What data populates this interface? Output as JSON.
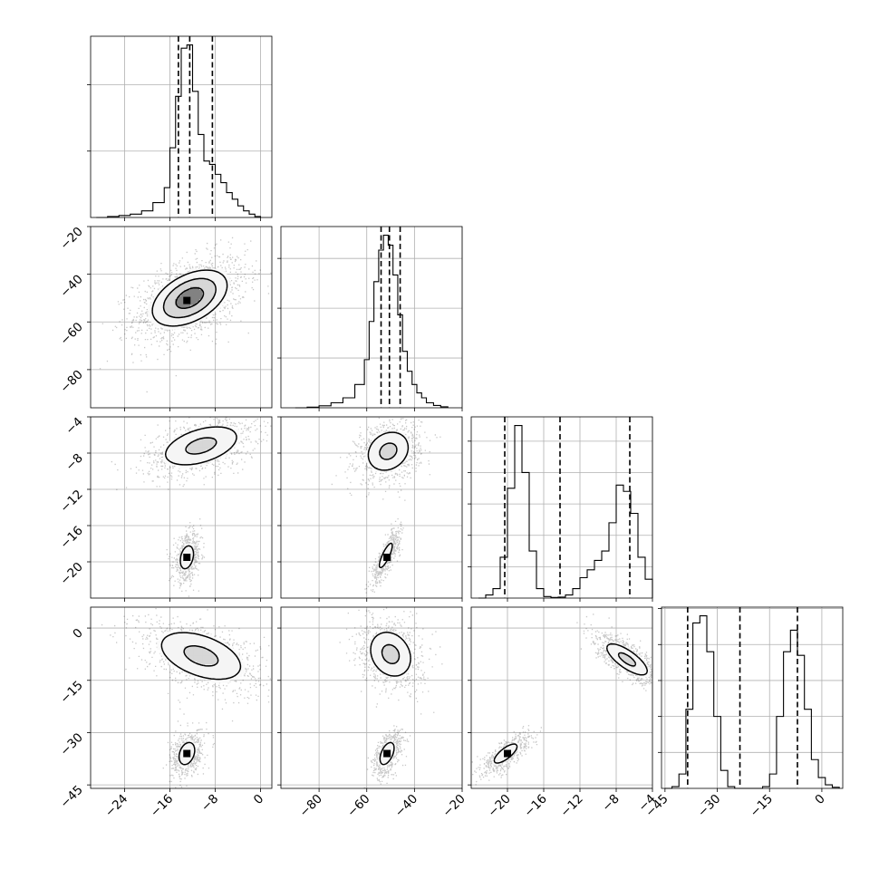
{
  "chart_data": {
    "type": "corner",
    "n_params": 4,
    "grid": true,
    "params": [
      {
        "range": [
          -30,
          2
        ],
        "ticks": [
          -24,
          -16,
          -8,
          0
        ],
        "tick_labels": [
          "−24",
          "−16",
          "−8",
          "0"
        ]
      },
      {
        "range": [
          -96,
          -20
        ],
        "ticks": [
          -80,
          -60,
          -40,
          -20
        ],
        "tick_labels": [
          "−80",
          "−60",
          "−40",
          "−20"
        ]
      },
      {
        "range": [
          -24.0,
          -4.0
        ],
        "ticks": [
          -20,
          -16,
          -12,
          -8,
          -4
        ],
        "tick_labels": [
          "−20",
          "−16",
          "−12",
          "−8",
          "−4"
        ]
      },
      {
        "range": [
          -46,
          6
        ],
        "ticks": [
          -45,
          -30,
          -15,
          0
        ],
        "tick_labels": [
          "−45",
          "−30",
          "−15",
          "0"
        ]
      }
    ],
    "histograms": [
      {
        "bin_edges": [
          -29,
          -27,
          -25,
          -23,
          -21,
          -19,
          -17,
          -16,
          -15,
          -14,
          -13,
          -12,
          -11,
          -10,
          -9,
          -8,
          -7,
          -6,
          -5,
          -4,
          -3,
          -2,
          -1,
          0
        ],
        "counts": [
          0.0,
          0.3,
          0.6,
          1.0,
          2.0,
          4.5,
          9.0,
          21.0,
          36.5,
          51.0,
          52.0,
          38.0,
          25.0,
          17.0,
          16.0,
          13.0,
          10.5,
          7.5,
          5.5,
          3.5,
          2.0,
          1.0,
          0.3
        ],
        "quantiles": [
          -14.5,
          -12.5,
          -8.5
        ],
        "y_gridlines": [
          20,
          40
        ]
      },
      {
        "bin_edges": [
          -90,
          -85,
          -80,
          -75,
          -70,
          -65,
          -61,
          -59,
          -57,
          -55,
          -53,
          -51,
          -49,
          -47,
          -45,
          -43,
          -41,
          -39,
          -37,
          -35,
          -32,
          -29,
          -26
        ],
        "counts": [
          0.0,
          0.2,
          0.6,
          1.5,
          3.0,
          7.0,
          14.5,
          26.0,
          38.0,
          47.5,
          52.0,
          49.0,
          40.0,
          28.0,
          17.0,
          11.0,
          7.0,
          4.5,
          3.0,
          1.5,
          0.7,
          0.3
        ],
        "quantiles": [
          -54.0,
          -50.5,
          -46.0
        ],
        "y_gridlines": [
          15,
          30,
          45
        ]
      },
      {
        "bin_edges": [
          -23.2,
          -22.4,
          -21.6,
          -20.8,
          -20.0,
          -19.2,
          -18.4,
          -17.6,
          -16.8,
          -16.0,
          -15.2,
          -14.4,
          -13.6,
          -12.8,
          -12.0,
          -11.2,
          -10.4,
          -9.6,
          -8.8,
          -8.0,
          -7.2,
          -6.4,
          -5.6,
          -4.8,
          -4.0
        ],
        "counts": [
          0.0,
          1.0,
          3.0,
          13.0,
          35.0,
          55.0,
          40.0,
          15.0,
          3.0,
          0.5,
          0.2,
          0.3,
          1.0,
          3.0,
          6.5,
          9.0,
          12.0,
          15.0,
          24.0,
          36.0,
          34.0,
          27.0,
          13.0,
          6.0
        ],
        "quantiles": [
          -20.3,
          -14.2,
          -6.5
        ],
        "y_gridlines": [
          10,
          20,
          30,
          40,
          50
        ]
      },
      {
        "bin_edges": [
          -45,
          -43,
          -41,
          -39,
          -37,
          -35,
          -33,
          -31,
          -29,
          -27,
          -25,
          -23,
          -21,
          -19,
          -17,
          -15,
          -13,
          -11,
          -9,
          -7,
          -5,
          -3,
          -1,
          1,
          3,
          5
        ],
        "counts": [
          0.0,
          0.5,
          4.0,
          22.0,
          46.0,
          48.0,
          38.0,
          20.0,
          5.0,
          0.5,
          0.0,
          0.0,
          0.0,
          0.0,
          0.5,
          4.0,
          20.0,
          38.0,
          44.0,
          37.0,
          22.0,
          8.0,
          3.0,
          1.0,
          0.3
        ],
        "quantiles": [
          -38.5,
          -23.5,
          -7.0
        ],
        "y_gridlines": [
          10,
          20,
          30,
          40,
          50
        ]
      }
    ],
    "pairs": [
      {
        "row": 1,
        "col": 0,
        "modes": [
          {
            "mx": -12.5,
            "my": -50,
            "sx": 4.5,
            "sy": 8,
            "rho": 0.45,
            "weight": 1.0
          }
        ],
        "contour_levels": [
          0.75,
          1.3,
          1.9
        ],
        "peak": [
          -13.0,
          -51.0
        ]
      },
      {
        "row": 2,
        "col": 0,
        "modes": [
          {
            "mx": -10.5,
            "my": -7.2,
            "sx": 4.5,
            "sy": 1.5,
            "rho": 0.45,
            "weight": 0.6
          },
          {
            "mx": -13.0,
            "my": -19.5,
            "sx": 1.1,
            "sy": 1.2,
            "rho": 0.3,
            "weight": 0.4
          }
        ],
        "contour_levels": [
          0.5,
          1.1,
          1.9
        ],
        "peak": [
          -13.0,
          -19.5
        ]
      },
      {
        "row": 2,
        "col": 1,
        "modes": [
          {
            "mx": -51,
            "my": -7.8,
            "sx": 6.0,
            "sy": 1.5,
            "rho": 0.2,
            "weight": 0.6
          },
          {
            "mx": -52,
            "my": -19.3,
            "sx": 2.6,
            "sy": 1.3,
            "rho": 0.82,
            "weight": 0.4
          }
        ],
        "contour_levels": [
          0.5,
          1.1,
          1.9
        ],
        "peak": [
          -51.5,
          -19.5
        ]
      },
      {
        "row": 3,
        "col": 0,
        "modes": [
          {
            "mx": -10.5,
            "my": -8.0,
            "sx": 5.0,
            "sy": 4.8,
            "rho": -0.45,
            "weight": 0.6
          },
          {
            "mx": -13.0,
            "my": -36.0,
            "sx": 1.3,
            "sy": 3.0,
            "rho": 0.3,
            "weight": 0.4
          }
        ],
        "contour_levels": [
          0.5,
          1.1,
          1.9
        ],
        "peak": [
          -13.0,
          -36.0
        ]
      },
      {
        "row": 3,
        "col": 1,
        "modes": [
          {
            "mx": -50,
            "my": -7.5,
            "sx": 6.0,
            "sy": 4.5,
            "rho": -0.2,
            "weight": 0.6
          },
          {
            "mx": -51.5,
            "my": -36.0,
            "sx": 2.8,
            "sy": 3.0,
            "rho": 0.5,
            "weight": 0.4
          }
        ],
        "contour_levels": [
          0.5,
          1.1,
          1.9
        ],
        "peak": [
          -51.5,
          -36.0
        ]
      },
      {
        "row": 3,
        "col": 2,
        "modes": [
          {
            "mx": -6.8,
            "my": -9.0,
            "sx": 1.6,
            "sy": 3.2,
            "rho": -0.75,
            "weight": 0.6
          },
          {
            "mx": -20.2,
            "my": -36.0,
            "sx": 1.2,
            "sy": 2.6,
            "rho": 0.75,
            "weight": 0.4
          }
        ],
        "contour_levels": [
          0.5,
          1.1,
          1.9
        ],
        "peak": [
          -20.0,
          -36.0
        ]
      }
    ]
  }
}
